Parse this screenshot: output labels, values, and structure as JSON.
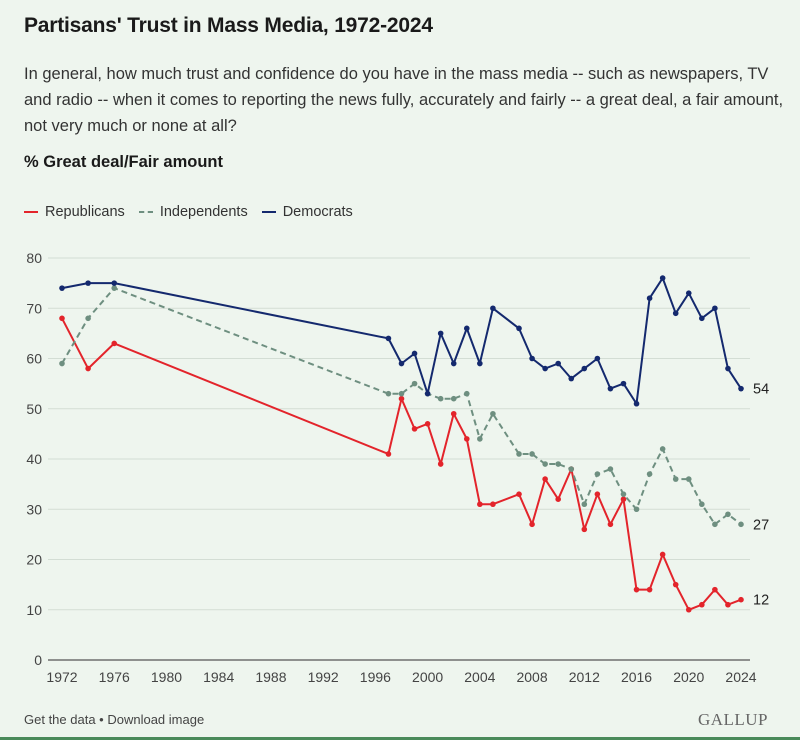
{
  "header": {
    "title": "Partisans' Trust in Mass Media, 1972-2024",
    "question": "In general, how much trust and confidence do you have in the mass media -- such as newspapers, TV and radio -- when it comes to reporting the news fully, accurately and fairly -- a great deal, a fair amount, not very much or none at all?",
    "measure": "% Great deal/Fair amount"
  },
  "footer": {
    "get_data": "Get the data",
    "separator": " • ",
    "download": "Download image",
    "brand": "GALLUP"
  },
  "chart_data": {
    "type": "line",
    "title": "Partisans' Trust in Mass Media, 1972-2024",
    "subtitle": "% Great deal/Fair amount",
    "xlabel": "",
    "ylabel": "",
    "xlim": [
      1972,
      2024
    ],
    "ylim": [
      0,
      80
    ],
    "x_ticks": [
      1972,
      1976,
      1980,
      1984,
      1988,
      1992,
      1996,
      2000,
      2004,
      2008,
      2012,
      2016,
      2020,
      2024
    ],
    "y_ticks": [
      0,
      10,
      20,
      30,
      40,
      50,
      60,
      70,
      80
    ],
    "grid": "horizontal",
    "legend": "top-left",
    "series": [
      {
        "name": "Republicans",
        "color": "#e3242b",
        "style": "solid",
        "end_label": "12",
        "points": [
          [
            1972,
            68
          ],
          [
            1974,
            58
          ],
          [
            1976,
            63
          ],
          [
            1997,
            41
          ],
          [
            1998,
            52
          ],
          [
            1999,
            46
          ],
          [
            2000,
            47
          ],
          [
            2001,
            39
          ],
          [
            2002,
            49
          ],
          [
            2003,
            44
          ],
          [
            2004,
            31
          ],
          [
            2005,
            31
          ],
          [
            2007,
            33
          ],
          [
            2008,
            27
          ],
          [
            2009,
            36
          ],
          [
            2010,
            32
          ],
          [
            2011,
            38
          ],
          [
            2012,
            26
          ],
          [
            2013,
            33
          ],
          [
            2014,
            27
          ],
          [
            2015,
            32
          ],
          [
            2016,
            14
          ],
          [
            2017,
            14
          ],
          [
            2018,
            21
          ],
          [
            2019,
            15
          ],
          [
            2020,
            10
          ],
          [
            2021,
            11
          ],
          [
            2022,
            14
          ],
          [
            2023,
            11
          ],
          [
            2024,
            12
          ]
        ]
      },
      {
        "name": "Independents",
        "color": "#6e8f80",
        "style": "dashed",
        "end_label": "27",
        "points": [
          [
            1972,
            59
          ],
          [
            1974,
            68
          ],
          [
            1976,
            74
          ],
          [
            1997,
            53
          ],
          [
            1998,
            53
          ],
          [
            1999,
            55
          ],
          [
            2000,
            53
          ],
          [
            2001,
            52
          ],
          [
            2002,
            52
          ],
          [
            2003,
            53
          ],
          [
            2004,
            44
          ],
          [
            2005,
            49
          ],
          [
            2007,
            41
          ],
          [
            2008,
            41
          ],
          [
            2009,
            39
          ],
          [
            2010,
            39
          ],
          [
            2011,
            38
          ],
          [
            2012,
            31
          ],
          [
            2013,
            37
          ],
          [
            2014,
            38
          ],
          [
            2015,
            33
          ],
          [
            2016,
            30
          ],
          [
            2017,
            37
          ],
          [
            2018,
            42
          ],
          [
            2019,
            36
          ],
          [
            2020,
            36
          ],
          [
            2021,
            31
          ],
          [
            2022,
            27
          ],
          [
            2023,
            29
          ],
          [
            2024,
            27
          ]
        ]
      },
      {
        "name": "Democrats",
        "color": "#14296e",
        "style": "solid",
        "end_label": "54",
        "points": [
          [
            1972,
            74
          ],
          [
            1974,
            75
          ],
          [
            1976,
            75
          ],
          [
            1997,
            64
          ],
          [
            1998,
            59
          ],
          [
            1999,
            61
          ],
          [
            2000,
            53
          ],
          [
            2001,
            65
          ],
          [
            2002,
            59
          ],
          [
            2003,
            66
          ],
          [
            2004,
            59
          ],
          [
            2005,
            70
          ],
          [
            2007,
            66
          ],
          [
            2008,
            60
          ],
          [
            2009,
            58
          ],
          [
            2010,
            59
          ],
          [
            2011,
            56
          ],
          [
            2012,
            58
          ],
          [
            2013,
            60
          ],
          [
            2014,
            54
          ],
          [
            2015,
            55
          ],
          [
            2016,
            51
          ],
          [
            2017,
            72
          ],
          [
            2018,
            76
          ],
          [
            2019,
            69
          ],
          [
            2020,
            73
          ],
          [
            2021,
            68
          ],
          [
            2022,
            70
          ],
          [
            2023,
            58
          ],
          [
            2024,
            54
          ]
        ]
      }
    ]
  }
}
